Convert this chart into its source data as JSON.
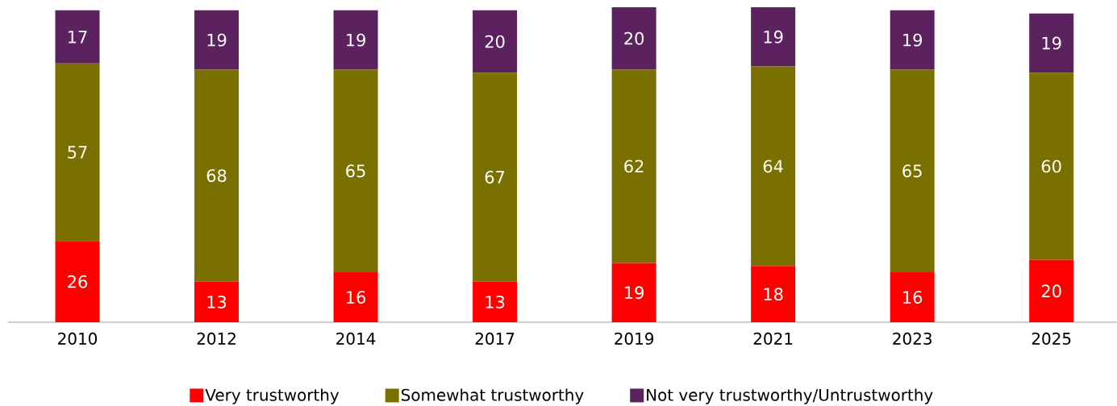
{
  "chart_data": {
    "type": "bar",
    "stacked": true,
    "data_labels": true,
    "legend": "bottom",
    "categories": [
      "2010",
      "2012",
      "2014",
      "2017",
      "2019",
      "2021",
      "2023",
      "2025"
    ],
    "series": [
      {
        "name": "Very trustworthy",
        "color": "#ff0000",
        "values": [
          26,
          13,
          16,
          13,
          19,
          18,
          16,
          20
        ]
      },
      {
        "name": "Somewhat trustworthy",
        "color": "#7a7000",
        "values": [
          57,
          68,
          65,
          67,
          62,
          64,
          65,
          60
        ]
      },
      {
        "name": "Not very trustworthy/Untrustworthy",
        "color": "#5c2260",
        "values": [
          17,
          19,
          19,
          20,
          20,
          19,
          19,
          19
        ]
      }
    ]
  }
}
